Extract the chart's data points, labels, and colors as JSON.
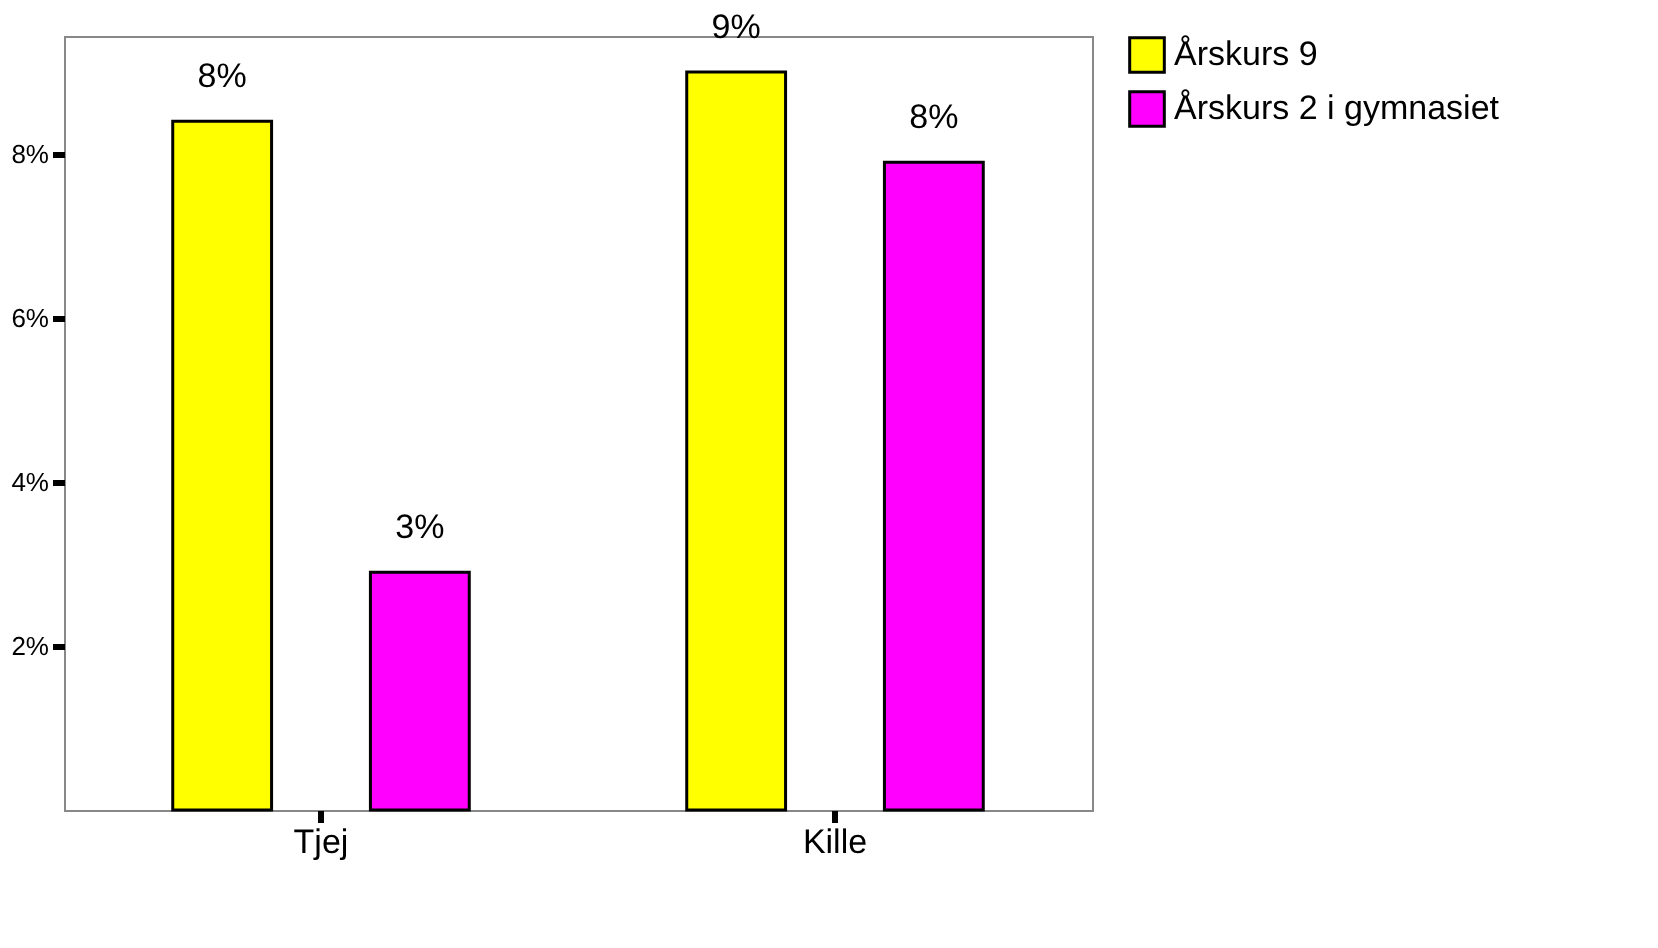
{
  "chart_data": {
    "type": "bar",
    "categories": [
      "Tjej",
      "Kille"
    ],
    "series": [
      {
        "name": "Årskurs 9",
        "color": "#ffff00",
        "values": [
          8.4,
          9.0
        ],
        "value_labels": [
          "8%",
          "9%"
        ]
      },
      {
        "name": "Årskurs 2 i gymnasiet",
        "color": "#ff00ff",
        "values": [
          2.9,
          7.9
        ],
        "value_labels": [
          "3%",
          "8%"
        ]
      }
    ],
    "ylim": [
      0,
      9.44
    ],
    "yticks": [
      {
        "value": 2,
        "label": "2%"
      },
      {
        "value": 4,
        "label": "4%"
      },
      {
        "value": 6,
        "label": "6%"
      },
      {
        "value": 8,
        "label": "8%"
      }
    ],
    "grid": false,
    "legend": "top right"
  }
}
